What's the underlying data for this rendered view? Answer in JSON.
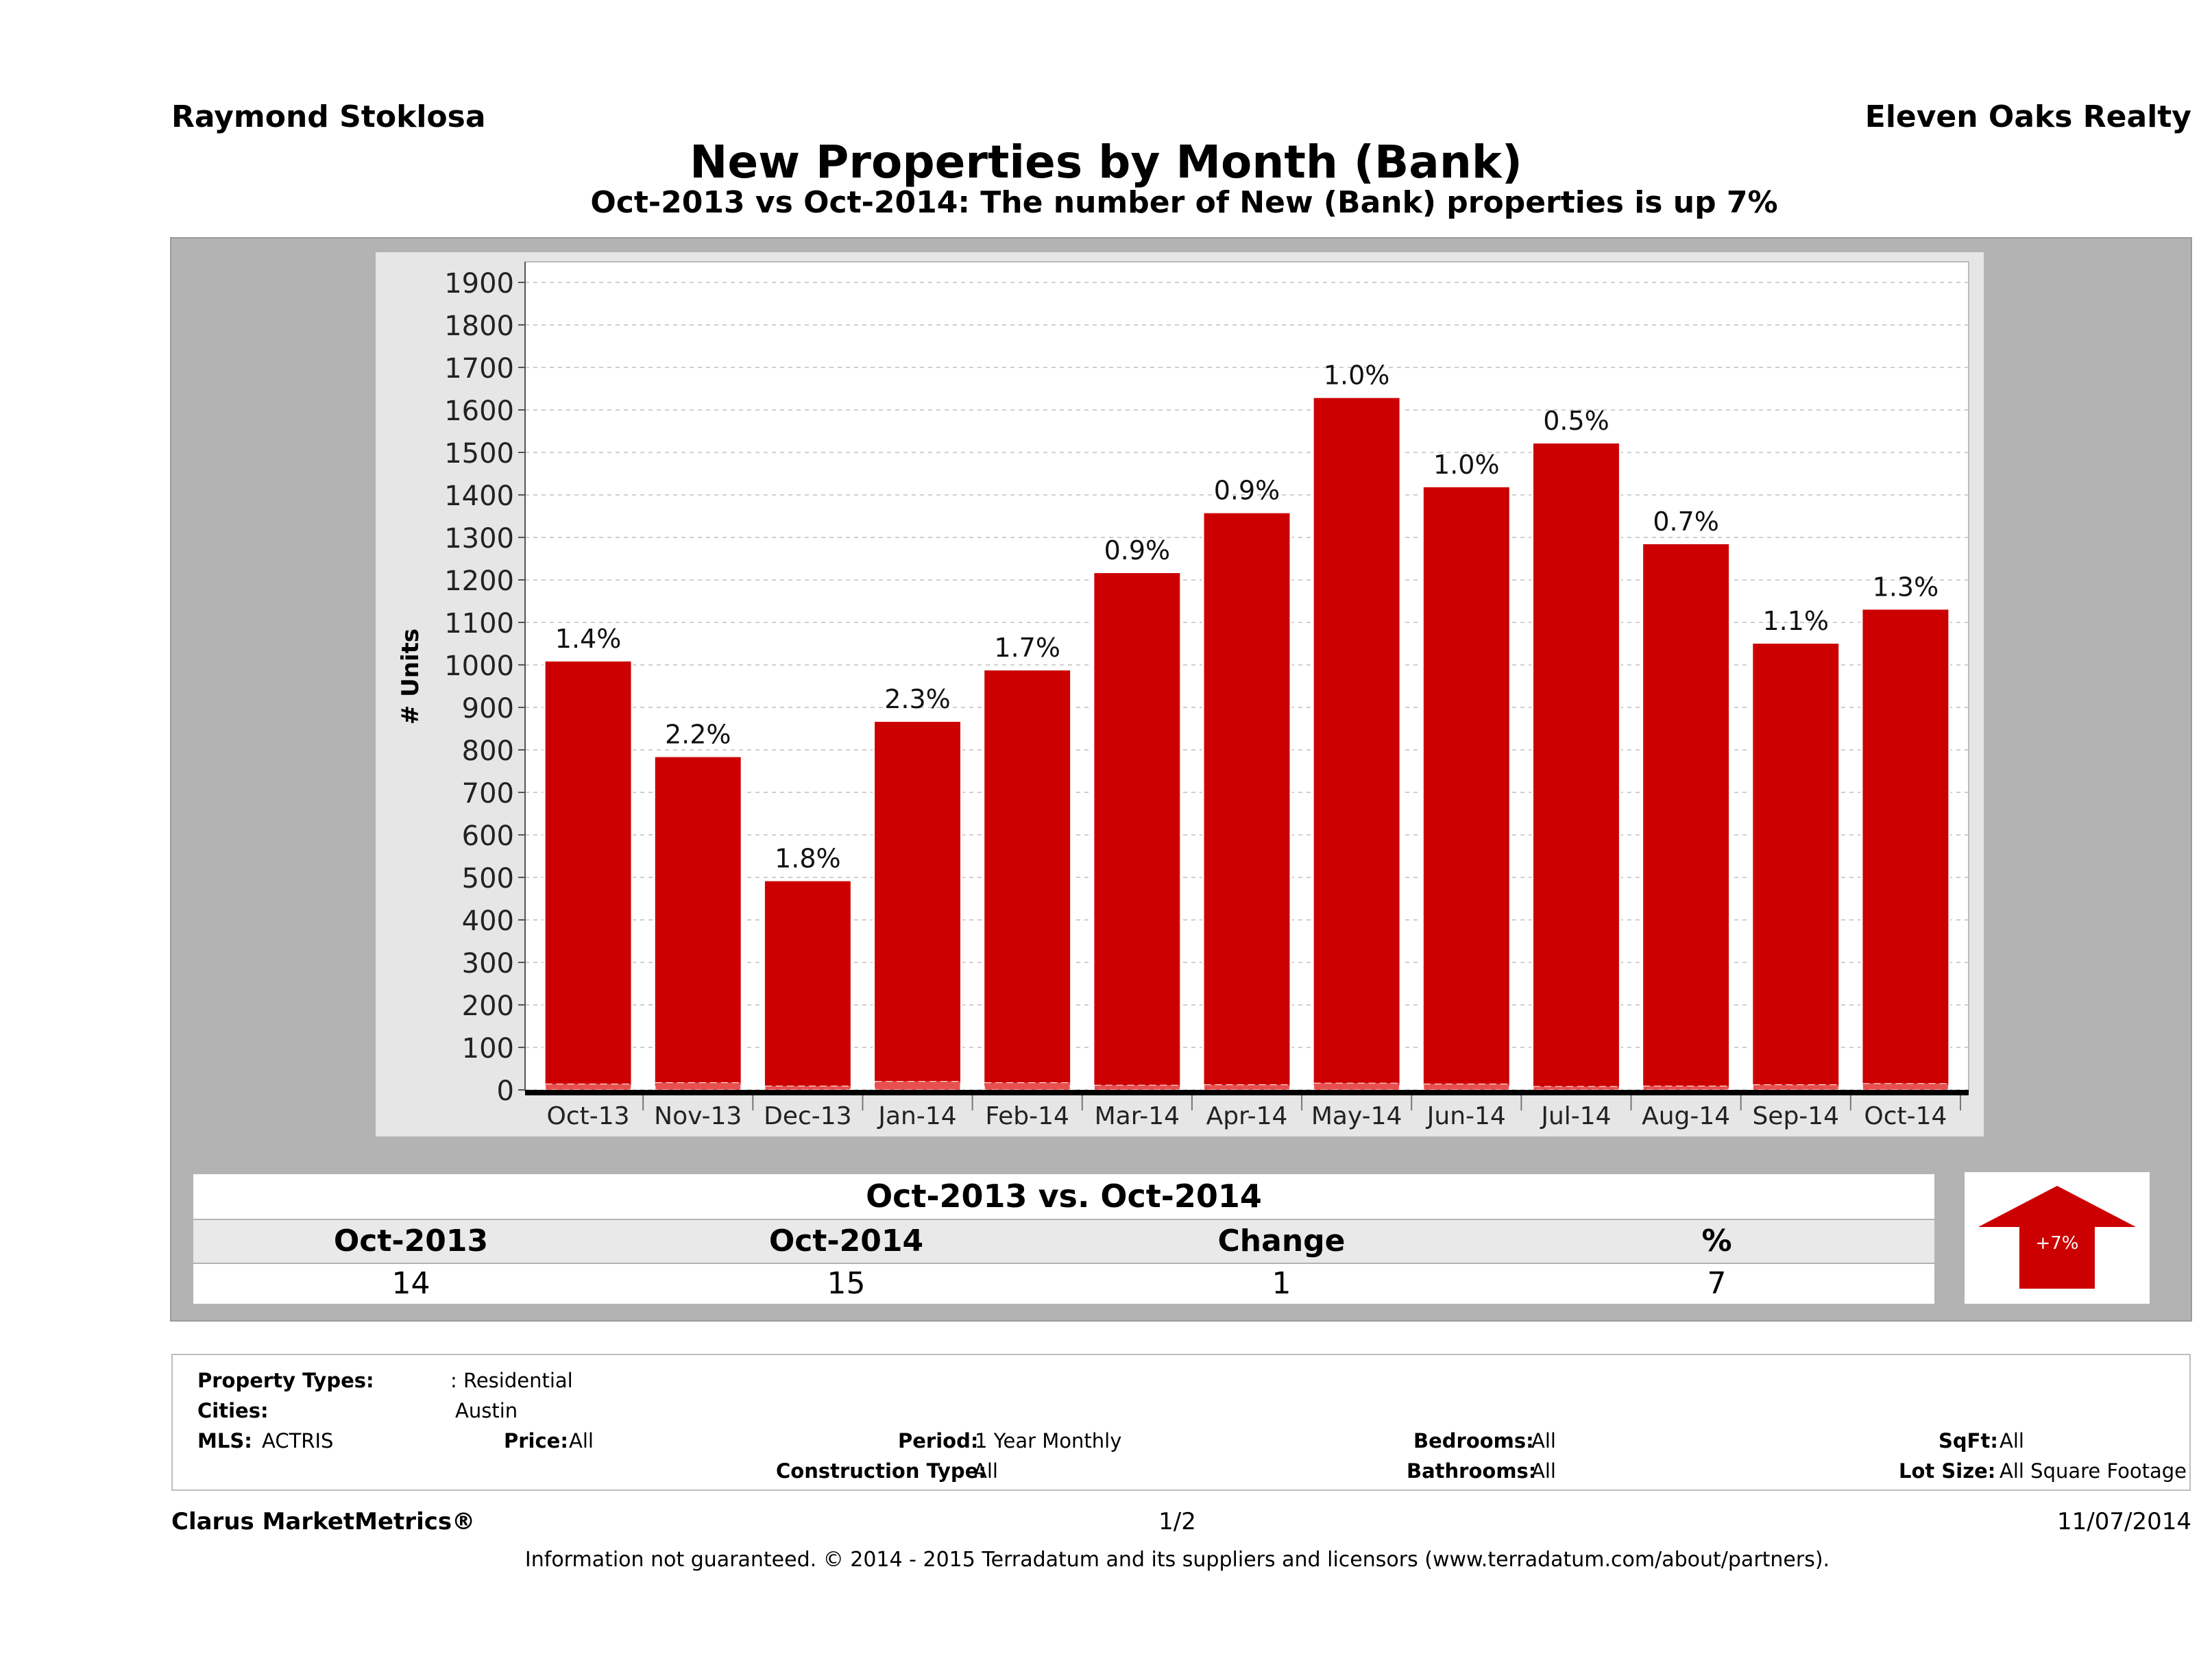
{
  "header": {
    "agent": "Raymond Stoklosa",
    "brokerage": "Eleven Oaks Realty",
    "title": "New Properties by Month (Bank)",
    "subtitle": "Oct-2013 vs Oct-2014: The number of New (Bank)  properties is up 7%"
  },
  "colors": {
    "bar": "#cc0000",
    "bar_edge": "#ffffff",
    "panel": "#b3b3b3",
    "plot_bg": "#ffffff",
    "arrow": "#cc0000"
  },
  "chart_data": {
    "type": "bar",
    "ylabel": "# Units",
    "ylim": [
      0,
      1900
    ],
    "yticks": [
      0,
      100,
      200,
      300,
      400,
      500,
      600,
      700,
      800,
      900,
      1000,
      1100,
      1200,
      1300,
      1400,
      1500,
      1600,
      1700,
      1800,
      1900
    ],
    "grid": true,
    "categories": [
      "Oct-13",
      "Nov-13",
      "Dec-13",
      "Jan-14",
      "Feb-14",
      "Mar-14",
      "Apr-14",
      "May-14",
      "Jun-14",
      "Jul-14",
      "Aug-14",
      "Sep-14",
      "Oct-14"
    ],
    "values": [
      1008,
      783,
      491,
      866,
      987,
      1216,
      1357,
      1628,
      1418,
      1521,
      1284,
      1050,
      1130
    ],
    "bank_values": [
      14,
      17,
      9,
      20,
      17,
      11,
      12,
      16,
      14,
      8,
      9,
      12,
      15
    ],
    "labels": [
      "1.4%",
      "2.2%",
      "1.8%",
      "2.3%",
      "1.7%",
      "0.9%",
      "0.9%",
      "1.0%",
      "1.0%",
      "0.5%",
      "0.7%",
      "1.1%",
      "1.3%"
    ]
  },
  "comparison": {
    "title": "Oct-2013 vs. Oct-2014",
    "headers": [
      "Oct-2013",
      "Oct-2014",
      "Change",
      "%"
    ],
    "values": [
      "14",
      "15",
      "1",
      "7"
    ],
    "arrow_label": "+7%"
  },
  "criteria": {
    "property_types_label": "Property Types:",
    "property_types_value": ": Residential",
    "cities_label": "Cities:",
    "cities_value": "Austin",
    "mls_label": "MLS:",
    "mls_value": "ACTRIS",
    "price_label": "Price:",
    "price_value": "All",
    "period_label": "Period:",
    "period_value": "1 Year Monthly",
    "bedrooms_label": "Bedrooms:",
    "bedrooms_value": "All",
    "sqft_label": "SqFt:",
    "sqft_value": "All",
    "construction_label": "Construction Type:",
    "construction_value": "All",
    "bathrooms_label": "Bathrooms:",
    "bathrooms_value": "All",
    "lot_label": "Lot Size:",
    "lot_value": "All Square Footage"
  },
  "footer": {
    "brand": "Clarus MarketMetrics®",
    "page": "1/2",
    "date": "11/07/2014",
    "disclaimer": "Information not guaranteed. © 2014 - 2015 Terradatum and its suppliers and licensors (www.terradatum.com/about/partners)."
  }
}
